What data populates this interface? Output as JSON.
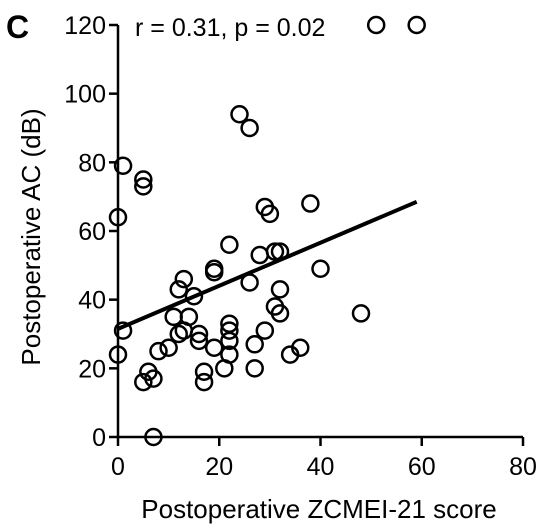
{
  "panel_label": "C",
  "chart_data": {
    "type": "scatter",
    "title": "",
    "xlabel": "Postoperative ZCMEI-21 score",
    "ylabel": "Postoperative AC (dB)",
    "xlim": [
      0,
      80
    ],
    "ylim": [
      0,
      120
    ],
    "xticks": [
      0,
      20,
      40,
      60,
      80
    ],
    "yticks": [
      0,
      20,
      40,
      60,
      80,
      100,
      120
    ],
    "annotation": "r = 0.31, p = 0.02",
    "marker": "open-circle",
    "color": "#000000",
    "points": [
      [
        1,
        79
      ],
      [
        0,
        64
      ],
      [
        5,
        75
      ],
      [
        5,
        73
      ],
      [
        0,
        24
      ],
      [
        1,
        31
      ],
      [
        5,
        16
      ],
      [
        6,
        19
      ],
      [
        7,
        17
      ],
      [
        7,
        0
      ],
      [
        8,
        25
      ],
      [
        10,
        26
      ],
      [
        11,
        35
      ],
      [
        12,
        30
      ],
      [
        12,
        43
      ],
      [
        13,
        46
      ],
      [
        13,
        31
      ],
      [
        14,
        35
      ],
      [
        15,
        41
      ],
      [
        16,
        30
      ],
      [
        16,
        28
      ],
      [
        17,
        19
      ],
      [
        17,
        16
      ],
      [
        19,
        26
      ],
      [
        19,
        49
      ],
      [
        19,
        48
      ],
      [
        21,
        20
      ],
      [
        22,
        56
      ],
      [
        22,
        33
      ],
      [
        22,
        31
      ],
      [
        22,
        28
      ],
      [
        22,
        24
      ],
      [
        24,
        94
      ],
      [
        26,
        90
      ],
      [
        26,
        45
      ],
      [
        27,
        27
      ],
      [
        27,
        20
      ],
      [
        28,
        53
      ],
      [
        29,
        31
      ],
      [
        29,
        67
      ],
      [
        30,
        65
      ],
      [
        31,
        54
      ],
      [
        31,
        38
      ],
      [
        32,
        54
      ],
      [
        32,
        43
      ],
      [
        32,
        36
      ],
      [
        34,
        24
      ],
      [
        36,
        26
      ],
      [
        38,
        68
      ],
      [
        40,
        49
      ],
      [
        48,
        36
      ],
      [
        51,
        120
      ],
      [
        59,
        120
      ]
    ],
    "regression": {
      "x": [
        0,
        59
      ],
      "y": [
        31.5,
        68.5
      ]
    }
  }
}
